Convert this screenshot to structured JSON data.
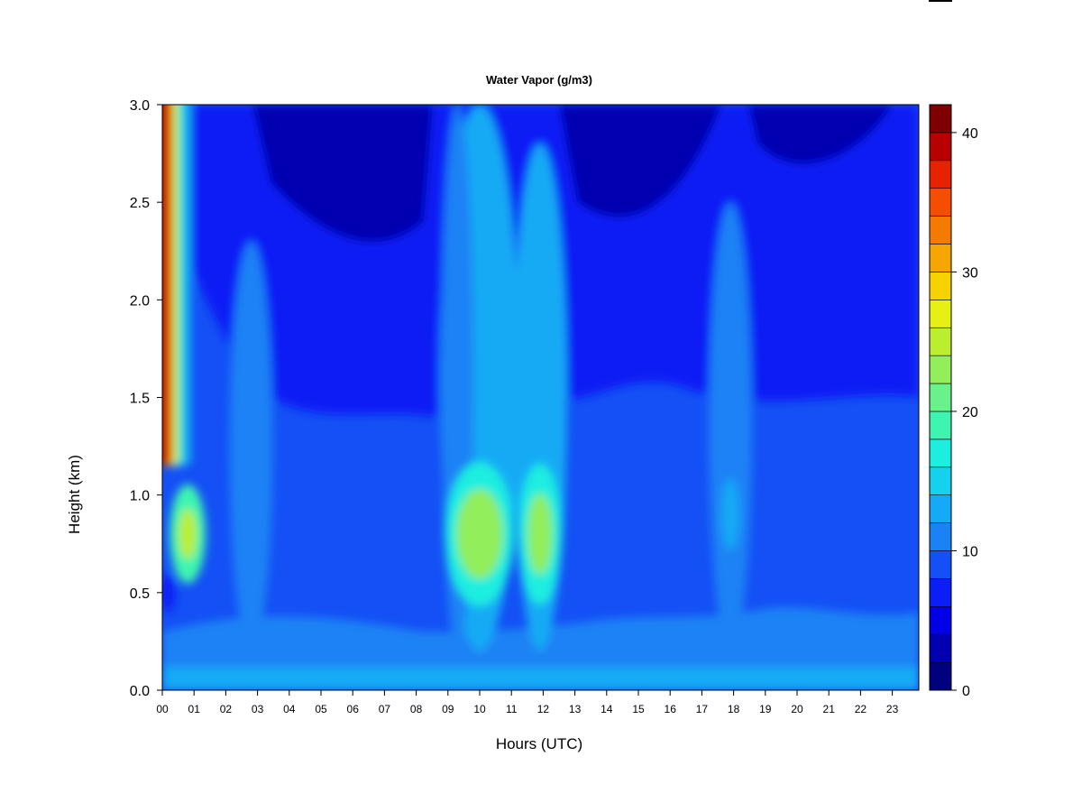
{
  "chart_data": {
    "type": "heatmap",
    "title": "Water Vapor (g/m3)",
    "xlabel": "Hours (UTC)",
    "ylabel": "Height (km)",
    "x_tick_labels": [
      "00",
      "01",
      "02",
      "03",
      "04",
      "05",
      "06",
      "07",
      "08",
      "09",
      "10",
      "11",
      "12",
      "13",
      "14",
      "15",
      "16",
      "17",
      "18",
      "19",
      "20",
      "21",
      "22",
      "23"
    ],
    "x_range": [
      0,
      23.8
    ],
    "y_ticks": [
      0.0,
      0.5,
      1.0,
      1.5,
      2.0,
      2.5,
      3.0
    ],
    "y_tick_labels": [
      "0.0",
      "0.5",
      "1.0",
      "1.5",
      "2.0",
      "2.5",
      "3.0"
    ],
    "y_range": [
      0,
      3.0
    ],
    "colorbar": {
      "min": 0,
      "max": 42,
      "levels": [
        0,
        2,
        4,
        6,
        8,
        10,
        12,
        14,
        16,
        18,
        20,
        22,
        24,
        26,
        28,
        30,
        32,
        34,
        36,
        38,
        40,
        42
      ],
      "colors": [
        "#00007f",
        "#0000b0",
        "#0000e6",
        "#0a1ef5",
        "#1450f5",
        "#1a82f5",
        "#14aaf5",
        "#14d2ee",
        "#1eeee0",
        "#3ef5b0",
        "#6af28a",
        "#92ee5a",
        "#bcee30",
        "#e6f014",
        "#f5d200",
        "#f5a600",
        "#f57a00",
        "#f54e00",
        "#e62200",
        "#b80000",
        "#7f0000"
      ],
      "tick_values": [
        0,
        10,
        20,
        30,
        40
      ],
      "tick_labels": [
        "0",
        "10",
        "20",
        "30",
        "40"
      ]
    },
    "grid": false,
    "moisture_features": [
      {
        "hour": 0.2,
        "core_height_km": 2.0,
        "peak_value": 38
      },
      {
        "hour": 0.8,
        "core_height_km": 0.8,
        "peak_value": 24
      },
      {
        "hour": 2.8,
        "core_height_km": 2.1,
        "peak_value": 10
      },
      {
        "hour": 10.0,
        "core_height_km": 0.8,
        "peak_value": 24
      },
      {
        "hour": 11.9,
        "core_height_km": 0.8,
        "peak_value": 24
      },
      {
        "hour": 17.9,
        "core_height_km": 0.9,
        "peak_value": 13
      }
    ]
  }
}
